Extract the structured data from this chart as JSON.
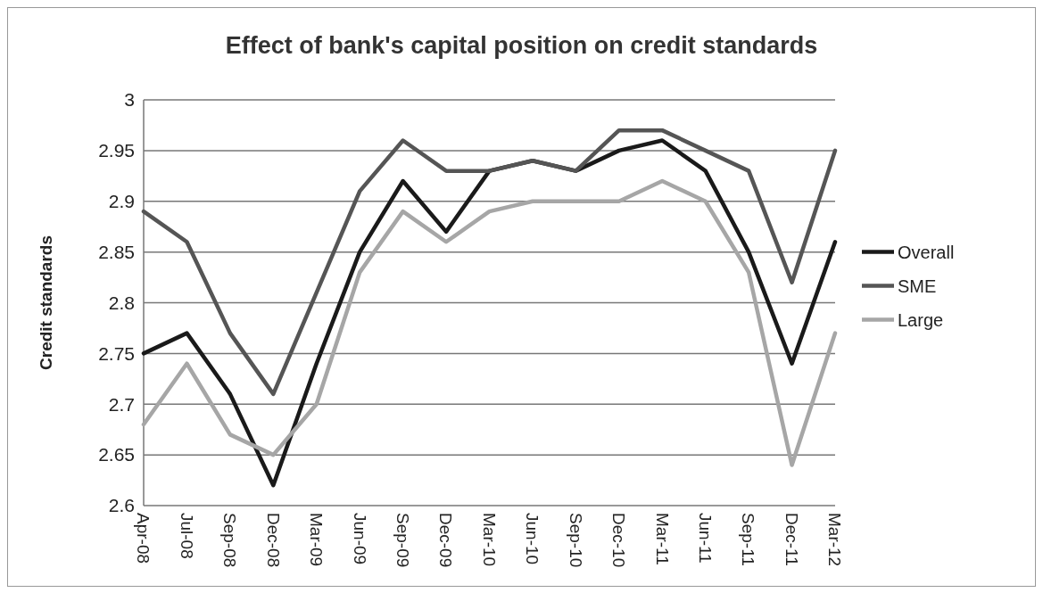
{
  "chart_data": {
    "type": "line",
    "title": "Effect of bank's capital position on credit standards",
    "ylabel": "Credit standards",
    "categories": [
      "Apr-08",
      "Jul-08",
      "Sep-08",
      "Dec-08",
      "Mar-09",
      "Jun-09",
      "Sep-09",
      "Dec-09",
      "Mar-10",
      "Jun-10",
      "Sep-10",
      "Dec-10",
      "Mar-11",
      "Jun-11",
      "Sep-11",
      "Dec-11",
      "Mar-12"
    ],
    "series": [
      {
        "name": "Overall",
        "color": "#1a1a1a",
        "values": [
          2.75,
          2.77,
          2.71,
          2.62,
          2.74,
          2.85,
          2.92,
          2.87,
          2.93,
          2.94,
          2.93,
          2.95,
          2.96,
          2.93,
          2.85,
          2.74,
          2.86
        ]
      },
      {
        "name": "SME",
        "color": "#555555",
        "values": [
          2.89,
          2.86,
          2.77,
          2.71,
          2.81,
          2.91,
          2.96,
          2.93,
          2.93,
          2.94,
          2.93,
          2.97,
          2.97,
          2.95,
          2.93,
          2.82,
          2.95
        ]
      },
      {
        "name": "Large",
        "color": "#a6a6a6",
        "values": [
          2.68,
          2.74,
          2.67,
          2.65,
          2.7,
          2.83,
          2.89,
          2.86,
          2.89,
          2.9,
          2.9,
          2.9,
          2.92,
          2.9,
          2.83,
          2.64,
          2.77
        ]
      }
    ],
    "ylim": [
      2.6,
      3
    ],
    "yticks": [
      2.6,
      2.65,
      2.7,
      2.75,
      2.8,
      2.85,
      2.9,
      2.95,
      3
    ],
    "grid": "y",
    "legend": "right",
    "marker": "none",
    "line_style": "solid"
  }
}
